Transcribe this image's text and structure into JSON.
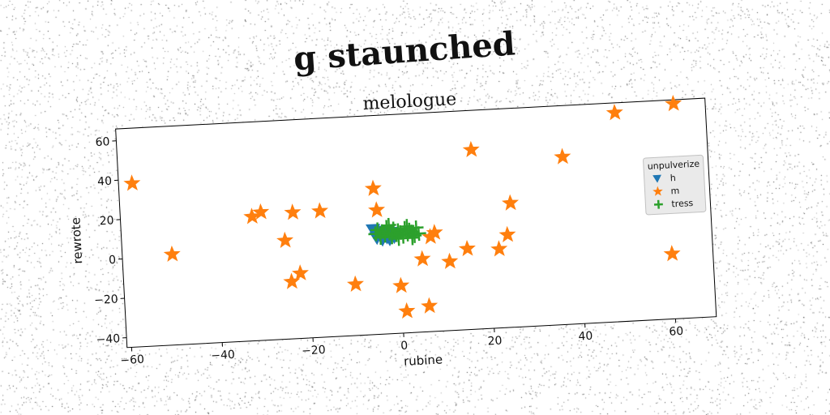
{
  "suptitle": "g staunched",
  "chart_data": {
    "type": "scatter",
    "title": "melologue",
    "xlabel": "rubine",
    "ylabel": "rewrote",
    "xlim": [
      -61,
      69
    ],
    "ylim": [
      -45,
      66
    ],
    "xticks": [
      -60,
      -40,
      -20,
      0,
      20,
      40,
      60
    ],
    "yticks": [
      -40,
      -20,
      0,
      20,
      40,
      60
    ],
    "grid": false,
    "legend": {
      "title": "unpulverize",
      "position": "right"
    },
    "series": [
      {
        "name": "h",
        "marker": "triangle-down",
        "color": "#1f77b4",
        "points": [
          [
            -5.5,
            8
          ],
          [
            -5,
            6
          ],
          [
            -4.8,
            4
          ],
          [
            -4.2,
            7
          ],
          [
            -4,
            5
          ],
          [
            -3.6,
            3
          ],
          [
            -3.4,
            6
          ],
          [
            -3,
            5
          ],
          [
            -2.6,
            4
          ],
          [
            -2.2,
            7
          ],
          [
            -2,
            3
          ],
          [
            -1.8,
            5
          ],
          [
            -1.4,
            6
          ],
          [
            -1,
            4
          ],
          [
            -0.6,
            5
          ]
        ]
      },
      {
        "name": "m",
        "marker": "star",
        "color": "#ff7f0e",
        "points": [
          [
            -58,
            38
          ],
          [
            -50,
            1
          ],
          [
            -32,
            18
          ],
          [
            -30,
            20
          ],
          [
            -25,
            5
          ],
          [
            -24,
            -16
          ],
          [
            -23,
            19
          ],
          [
            -22,
            -12
          ],
          [
            -17,
            19
          ],
          [
            -10,
            -19
          ],
          [
            -5,
            29
          ],
          [
            -4.5,
            18
          ],
          [
            0,
            -21
          ],
          [
            1,
            -34
          ],
          [
            6,
            -32
          ],
          [
            5,
            -8
          ],
          [
            7,
            3
          ],
          [
            8,
            5
          ],
          [
            11,
            -10
          ],
          [
            15,
            -4
          ],
          [
            17,
            46
          ],
          [
            22,
            -5
          ],
          [
            24,
            2
          ],
          [
            25,
            18
          ],
          [
            37,
            40
          ],
          [
            49,
            61
          ],
          [
            60,
            -12
          ],
          [
            62,
            64
          ]
        ]
      },
      {
        "name": "tress",
        "marker": "plus",
        "color": "#2ca02c",
        "points": [
          [
            -5,
            6
          ],
          [
            -4.5,
            8
          ],
          [
            -4,
            4
          ],
          [
            -3.5,
            7
          ],
          [
            -3,
            5
          ],
          [
            -2.5,
            9
          ],
          [
            -2,
            6
          ],
          [
            -1.5,
            4
          ],
          [
            -1,
            8
          ],
          [
            -0.5,
            5
          ],
          [
            0,
            7
          ],
          [
            0.5,
            6
          ],
          [
            1,
            4
          ],
          [
            1.5,
            8
          ],
          [
            2,
            5
          ],
          [
            2.5,
            7
          ],
          [
            3,
            6
          ],
          [
            3.5,
            4
          ],
          [
            4,
            8
          ],
          [
            4.5,
            5
          ],
          [
            -2,
            10
          ],
          [
            0,
            3
          ],
          [
            2,
            9
          ],
          [
            3,
            3
          ]
        ]
      }
    ]
  },
  "colors": {
    "axes": "#000000",
    "legend_bg": "#e8e8e8"
  }
}
